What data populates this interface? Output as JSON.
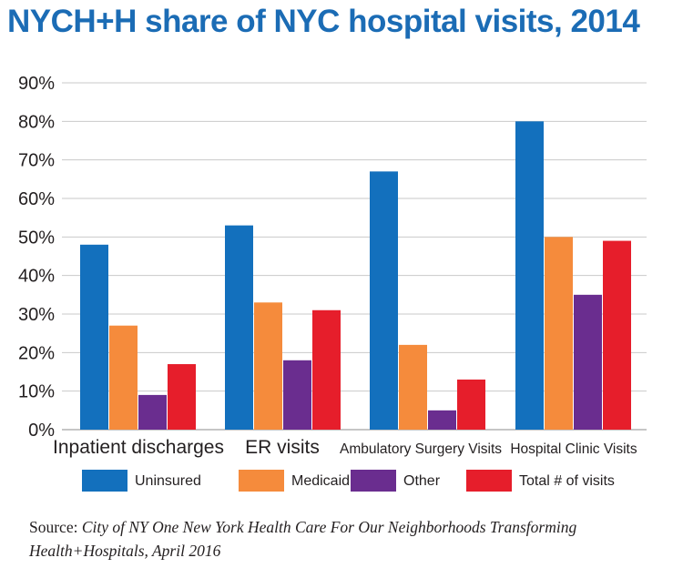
{
  "chart_data": {
    "type": "bar",
    "title": "NYCH+H share of NYC hospital visits, 2014",
    "categories": [
      "Inpatient discharges",
      "ER visits",
      "Ambulatory Surgery Visits",
      "Hospital Clinic Visits"
    ],
    "series": [
      {
        "name": "Uninsured",
        "color": "#1370bd",
        "values": [
          48,
          53,
          67,
          80
        ]
      },
      {
        "name": "Medicaid",
        "color": "#f58b3c",
        "values": [
          27,
          33,
          22,
          50
        ]
      },
      {
        "name": "Other",
        "color": "#6a2d8f",
        "values": [
          9,
          18,
          5,
          35
        ]
      },
      {
        "name": "Total # of visits",
        "color": "#e61e2b",
        "values": [
          17,
          31,
          13,
          49
        ]
      }
    ],
    "ylim": [
      0,
      90
    ],
    "yticks": [
      "0%",
      "10%",
      "20%",
      "30%",
      "40%",
      "50%",
      "60%",
      "70%",
      "80%",
      "90%"
    ],
    "xlabel": "",
    "ylabel": "",
    "grid": true,
    "legend_position": "bottom"
  },
  "source": {
    "prefix": "Source:",
    "text": "City of NY One New York Health Care For Our Neighborhoods Transforming Health+Hospitals, April 2016"
  }
}
